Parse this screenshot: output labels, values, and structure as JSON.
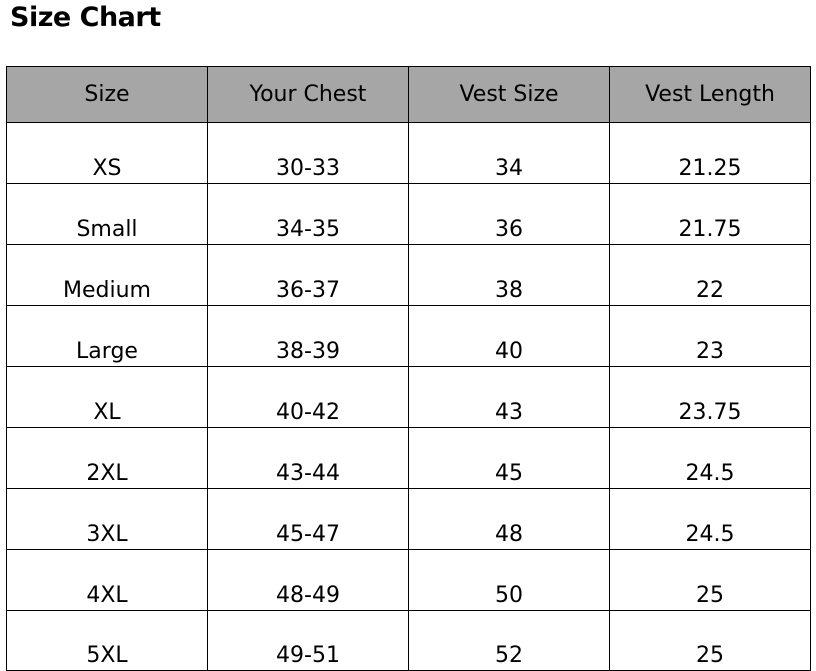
{
  "title": "Size Chart",
  "table": {
    "headers": [
      "Size",
      "Your Chest",
      "Vest Size",
      "Vest Length"
    ],
    "rows": [
      [
        "XS",
        "30-33",
        "34",
        "21.25"
      ],
      [
        "Small",
        "34-35",
        "36",
        "21.75"
      ],
      [
        "Medium",
        "36-37",
        "38",
        "22"
      ],
      [
        "Large",
        "38-39",
        "40",
        "23"
      ],
      [
        "XL",
        "40-42",
        "43",
        "23.75"
      ],
      [
        "2XL",
        "43-44",
        "45",
        "24.5"
      ],
      [
        "3XL",
        "45-47",
        "48",
        "24.5"
      ],
      [
        "4XL",
        "48-49",
        "50",
        "25"
      ],
      [
        "5XL",
        "49-51",
        "52",
        "25"
      ]
    ]
  },
  "colors": {
    "header_bg": "#a6a6a6",
    "border": "#000000"
  }
}
